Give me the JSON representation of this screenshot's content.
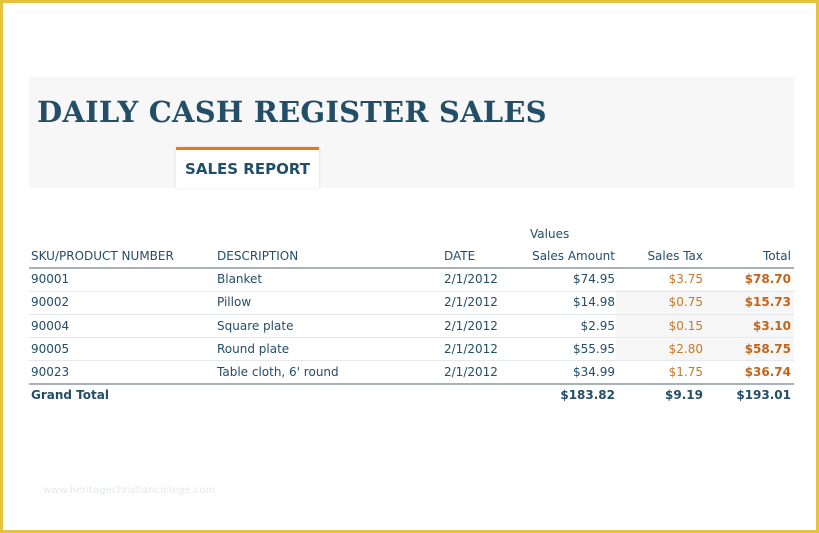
{
  "report": {
    "title": "DAILY CASH REGISTER SALES",
    "tab_label": "SALES REPORT",
    "values_label": "Values",
    "watermark": "www.heritagechristiancollege.com"
  },
  "table": {
    "columns": {
      "sku": "SKU/PRODUCT NUMBER",
      "description": "DESCRIPTION",
      "date": "DATE",
      "sales_amount": "Sales Amount",
      "sales_tax": "Sales Tax",
      "total": "Total"
    },
    "rows": [
      {
        "sku": "90001",
        "description": "Blanket",
        "date": "2/1/2012",
        "sales_amount": "$74.95",
        "sales_tax": "$3.75",
        "total": "$78.70"
      },
      {
        "sku": "90002",
        "description": "Pillow",
        "date": "2/1/2012",
        "sales_amount": "$14.98",
        "sales_tax": "$0.75",
        "total": "$15.73"
      },
      {
        "sku": "90004",
        "description": "Square plate",
        "date": "2/1/2012",
        "sales_amount": "$2.95",
        "sales_tax": "$0.15",
        "total": "$3.10"
      },
      {
        "sku": "90005",
        "description": "Round plate",
        "date": "2/1/2012",
        "sales_amount": "$55.95",
        "sales_tax": "$2.80",
        "total": "$58.75"
      },
      {
        "sku": "90023",
        "description": "Table cloth, 6' round",
        "date": "2/1/2012",
        "sales_amount": "$34.99",
        "sales_tax": "$1.75",
        "total": "$36.74"
      }
    ],
    "grand_total": {
      "label": "Grand Total",
      "sales_amount": "$183.82",
      "sales_tax": "$9.19",
      "total": "$193.01"
    }
  },
  "colors": {
    "title": "#234e67",
    "accent": "#e07b20",
    "frame": "#e3c43c",
    "tax_text": "#c8782a"
  }
}
